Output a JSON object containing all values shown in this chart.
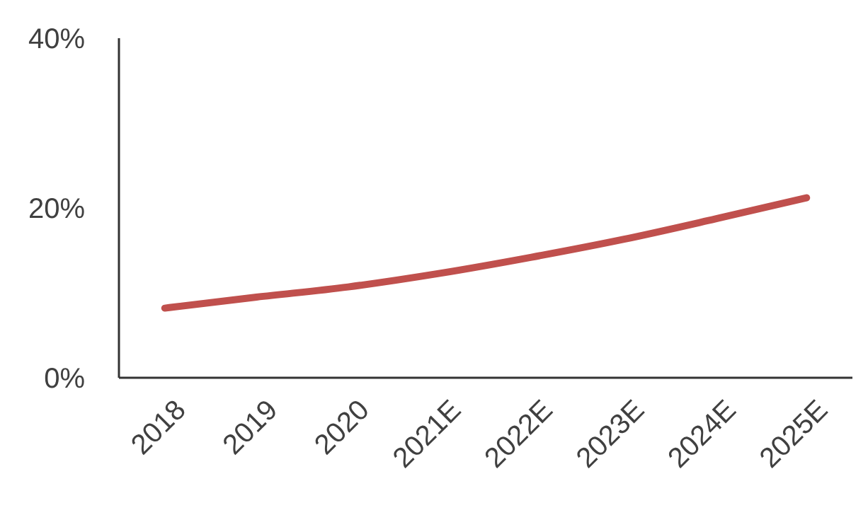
{
  "chart_data": {
    "type": "line",
    "categories": [
      "2018",
      "2019",
      "2020",
      "2021E",
      "2022E",
      "2023E",
      "2024E",
      "2025E"
    ],
    "series": [
      {
        "color": "#c0504d",
        "values": [
          8.2,
          9.5,
          10.7,
          12.3,
          14.2,
          16.3,
          18.7,
          21.2
        ]
      }
    ],
    "ylim": [
      0,
      40
    ],
    "yticks": [
      {
        "value": 0,
        "label": "0%"
      },
      {
        "value": 20,
        "label": "20%"
      },
      {
        "value": 40,
        "label": "40%"
      }
    ],
    "grid": false,
    "marker": "none",
    "line_style": "solid"
  }
}
